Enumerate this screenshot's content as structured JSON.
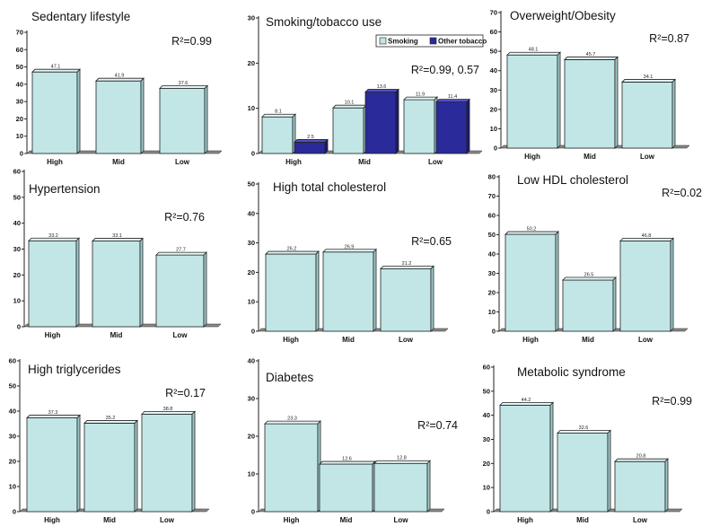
{
  "colors": {
    "smoking_fill": "#c2e6e6",
    "other_tobacco_fill": "#2a2a9a",
    "bar_outline": "#222222",
    "floor": "#8a8a8a",
    "axis": "#222222"
  },
  "chart_data": [
    {
      "type": "bar",
      "title": "Sedentary lifestyle",
      "r2": "R²=0.99",
      "categories": [
        "High",
        "Mid",
        "Low"
      ],
      "ylim": [
        0,
        70
      ],
      "yticks": [
        0,
        10,
        20,
        30,
        40,
        50,
        60,
        70
      ],
      "series": [
        {
          "values": [
            47.1,
            41.9,
            37.6
          ],
          "labels": [
            "47.1",
            "41.9",
            "37.6"
          ]
        }
      ]
    },
    {
      "type": "bar",
      "title": "Smoking/tobacco use",
      "r2": "R²=0.99, 0.57",
      "categories": [
        "High",
        "Mid",
        "Low"
      ],
      "ylim": [
        0,
        30
      ],
      "yticks": [
        0,
        10,
        20,
        30
      ],
      "legend": "top-right",
      "series": [
        {
          "name": "Smoking",
          "values": [
            8.1,
            10.1,
            11.9
          ],
          "labels": [
            "8.1",
            "10.1",
            "11.9"
          ]
        },
        {
          "name": "Other tobacco",
          "values": [
            2.5,
            13.6,
            11.4
          ],
          "labels": [
            "2.5",
            "13.6",
            "11.4"
          ]
        }
      ]
    },
    {
      "type": "bar",
      "title": "Overweight/Obesity",
      "r2": "R²=0.87",
      "categories": [
        "High",
        "Mid",
        "Low"
      ],
      "ylim": [
        0,
        70
      ],
      "yticks": [
        0,
        10,
        20,
        30,
        40,
        50,
        60,
        70
      ],
      "series": [
        {
          "values": [
            48.1,
            45.7,
            34.1
          ],
          "labels": [
            "48.1",
            "45.7",
            "34.1"
          ]
        }
      ]
    },
    {
      "type": "bar",
      "title": "Hypertension",
      "r2": "R²=0.76",
      "categories": [
        "High",
        "Mid",
        "Low"
      ],
      "ylim": [
        0,
        60
      ],
      "yticks": [
        0,
        10,
        20,
        30,
        40,
        50,
        60
      ],
      "series": [
        {
          "values": [
            33.2,
            33.1,
            27.7
          ],
          "labels": [
            "33.2",
            "33.1",
            "27.7"
          ]
        }
      ]
    },
    {
      "type": "bar",
      "title": "High total cholesterol",
      "r2": "R²=0.65",
      "categories": [
        "High",
        "Mid",
        "Low"
      ],
      "ylim": [
        0,
        50
      ],
      "yticks": [
        0,
        10,
        20,
        30,
        40,
        50
      ],
      "series": [
        {
          "values": [
            26.2,
            26.9,
            21.2
          ],
          "labels": [
            "26.2",
            "26.9",
            "21.2"
          ]
        }
      ]
    },
    {
      "type": "bar",
      "title": "Low HDL cholesterol",
      "r2": "R²=0.02",
      "categories": [
        "High",
        "Mid",
        "Low"
      ],
      "ylim": [
        0,
        80
      ],
      "yticks": [
        0,
        10,
        20,
        30,
        40,
        50,
        60,
        70,
        80
      ],
      "series": [
        {
          "values": [
            50.2,
            26.5,
            46.8
          ],
          "labels": [
            "50.2",
            "26.5",
            "46.8"
          ]
        }
      ]
    },
    {
      "type": "bar",
      "title": "High triglycerides",
      "r2": "R²=0.17",
      "categories": [
        "High",
        "Mid",
        "Low"
      ],
      "ylim": [
        0,
        60
      ],
      "yticks": [
        0,
        10,
        20,
        30,
        40,
        50,
        60
      ],
      "series": [
        {
          "values": [
            37.3,
            35.2,
            38.8
          ],
          "labels": [
            "37.3",
            "35.2",
            "38.8"
          ]
        }
      ]
    },
    {
      "type": "bar",
      "title": "Diabetes",
      "r2": "R²=0.74",
      "categories": [
        "High",
        "Mid",
        "Low"
      ],
      "ylim": [
        0,
        40
      ],
      "yticks": [
        0,
        10,
        20,
        30,
        40
      ],
      "series": [
        {
          "values": [
            23.3,
            12.6,
            12.8
          ],
          "labels": [
            "23.3",
            "12.6",
            "12.8"
          ]
        }
      ]
    },
    {
      "type": "bar",
      "title": "Metabolic syndrome",
      "r2": "R²=0.99",
      "categories": [
        "High",
        "Mid",
        "Low"
      ],
      "ylim": [
        0,
        60
      ],
      "yticks": [
        0,
        10,
        20,
        30,
        40,
        50,
        60
      ],
      "series": [
        {
          "values": [
            44.2,
            32.6,
            20.8
          ],
          "labels": [
            "44.2",
            "32.6",
            "20.8"
          ]
        }
      ]
    }
  ]
}
